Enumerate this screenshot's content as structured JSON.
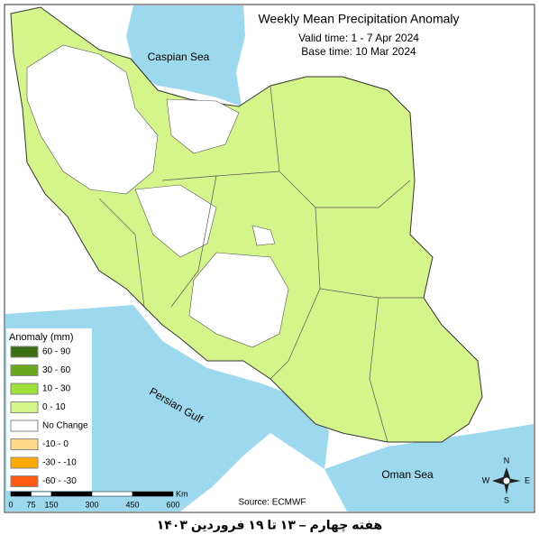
{
  "header": {
    "title": "Weekly Mean Precipitation Anomaly",
    "valid_time": "Valid time: 1 - 7 Apr 2024",
    "base_time": "Base time: 10 Mar 2024"
  },
  "labels": {
    "caspian": "Caspian Sea",
    "gulf": "Persian Gulf",
    "oman": "Oman Sea"
  },
  "legend": {
    "title": "Anomaly (mm)",
    "items": [
      {
        "label": "60 - 90",
        "color": "#3c6e14"
      },
      {
        "label": "30 - 60",
        "color": "#6aa820"
      },
      {
        "label": "10 - 30",
        "color": "#9fe03a"
      },
      {
        "label": "0 - 10",
        "color": "#d4f58a"
      },
      {
        "label": "No Change",
        "color": "#ffffff"
      },
      {
        "label": "-10 - 0",
        "color": "#ffd88a"
      },
      {
        "label": "-30 - -10",
        "color": "#ffaa00"
      },
      {
        "label": "-60 - -30",
        "color": "#ff5a14"
      }
    ]
  },
  "scale": {
    "ticks": [
      0,
      75,
      150,
      300,
      450,
      600
    ],
    "unit": "Km"
  },
  "source": "Source: ECMWF",
  "compass": {
    "n": "N",
    "e": "E",
    "s": "S",
    "w": "W"
  },
  "caption": "هفته چهارم – ۱۳ تا ۱۹ فروردین ۱۴۰۳"
}
